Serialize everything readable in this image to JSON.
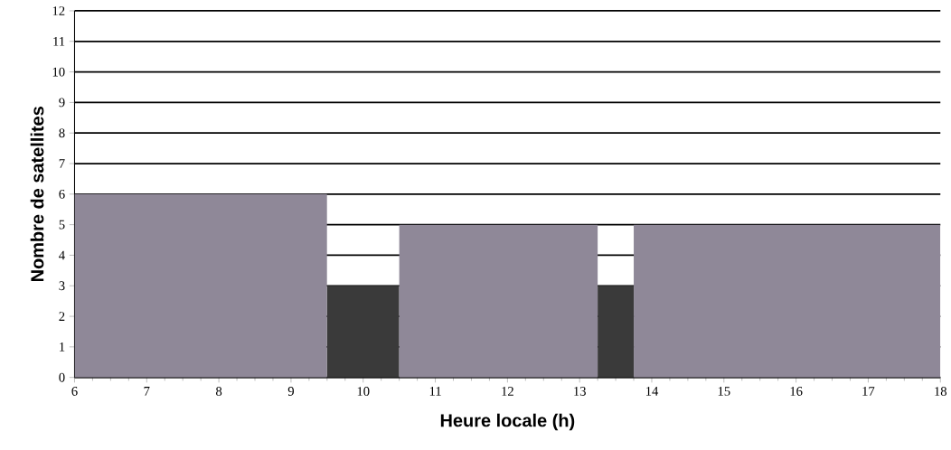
{
  "chart_data": {
    "type": "histogram",
    "xlabel": "Heure locale (h)",
    "ylabel": "Nombre de satellites",
    "bins": [
      6,
      9.5,
      10.5,
      13.25,
      13.75,
      18
    ],
    "values": [
      6,
      3,
      5,
      3,
      5
    ],
    "colors": [
      "#8f8898",
      "#3a3a3a",
      "#8f8898",
      "#3a3a3a",
      "#8f8898"
    ],
    "xlim": [
      6,
      18
    ],
    "xticks": [
      6,
      7,
      8,
      9,
      10,
      11,
      12,
      13,
      14,
      15,
      16,
      17,
      18
    ],
    "ylim": [
      0,
      12
    ],
    "yticks": [
      0,
      1,
      2,
      3,
      4,
      5,
      6,
      7,
      8,
      9,
      10,
      11,
      12
    ],
    "grid": "y"
  }
}
